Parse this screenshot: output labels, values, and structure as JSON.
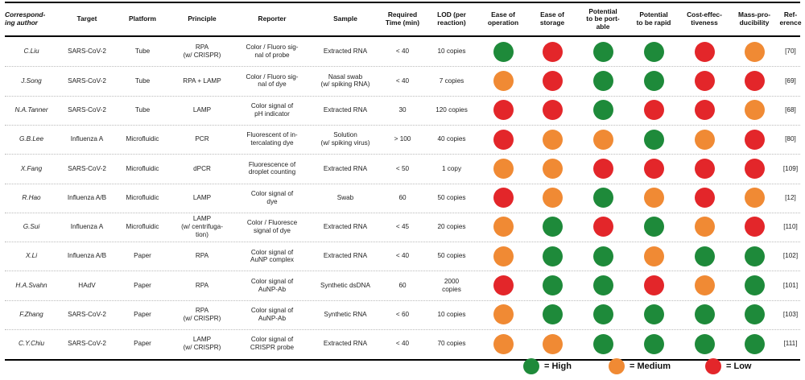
{
  "colors": {
    "High": "#1e8a3a",
    "Medium": "#f08a34",
    "Low": "#e3262a"
  },
  "headers": [
    "Correspond-\ning author",
    "Target",
    "Platform",
    "Principle",
    "Reporter",
    "Sample",
    "Required\nTime (min)",
    "LOD (per\nreaction)",
    "Ease of\noperation",
    "Ease of\nstorage",
    "Potential\nto be port-\nable",
    "Potential\nto be rapid",
    "Cost-effec-\ntiveness",
    "Mass-pro-\nducibility",
    "Ref-\nerence"
  ],
  "rows": [
    {
      "author": "C.Liu",
      "target": "SARS-CoV-2",
      "platform": "Tube",
      "principle": "RPA\n(w/ CRISPR)",
      "reporter": "Color / Fluoro sig-\nnal of probe",
      "sample": "Extracted RNA",
      "time": "< 40",
      "lod": "10 copies",
      "ratings": [
        "High",
        "Low",
        "High",
        "High",
        "Low",
        "Medium"
      ],
      "ref": "[70]"
    },
    {
      "author": "J.Song",
      "target": "SARS-CoV-2",
      "platform": "Tube",
      "principle": "RPA + LAMP",
      "reporter": "Color / Fluoro sig-\nnal of dye",
      "sample": "Nasal swab\n(w/ spiking RNA)",
      "time": "< 40",
      "lod": "7 copies",
      "ratings": [
        "Medium",
        "Low",
        "High",
        "High",
        "Low",
        "Low"
      ],
      "ref": "[69]"
    },
    {
      "author": "N.A.Tanner",
      "target": "SARS-CoV-2",
      "platform": "Tube",
      "principle": "LAMP",
      "reporter": "Color signal of\npH indicator",
      "sample": "Extracted RNA",
      "time": "30",
      "lod": "120 copies",
      "ratings": [
        "Low",
        "Low",
        "High",
        "Low",
        "Low",
        "Medium"
      ],
      "ref": "[68]"
    },
    {
      "author": "G.B.Lee",
      "target": "Influenza A",
      "platform": "Microfluidic",
      "principle": "PCR",
      "reporter": "Fluorescent of in-\ntercalating dye",
      "sample": "Solution\n(w/ spiking virus)",
      "time": "> 100",
      "lod": "40 copies",
      "ratings": [
        "Low",
        "Medium",
        "Medium",
        "High",
        "Medium",
        "Low"
      ],
      "ref": "[80]"
    },
    {
      "author": "X.Fang",
      "target": "SARS-CoV-2",
      "platform": "Microfluidic",
      "principle": "dPCR",
      "reporter": "Fluorescence of\ndroplet counting",
      "sample": "Extracted RNA",
      "time": "< 50",
      "lod": "1 copy",
      "ratings": [
        "Medium",
        "Medium",
        "Low",
        "Low",
        "Low",
        "Low"
      ],
      "ref": "[109]"
    },
    {
      "author": "R.Hao",
      "target": "Influenza A/B",
      "platform": "Microfluidic",
      "principle": "LAMP",
      "reporter": "Color signal of\ndye",
      "sample": "Swab",
      "time": "60",
      "lod": "50 copies",
      "ratings": [
        "Low",
        "Medium",
        "High",
        "Medium",
        "Low",
        "Medium"
      ],
      "ref": "[12]"
    },
    {
      "author": "G.Sui",
      "target": "Influenza A",
      "platform": "Microfluidic",
      "principle": "LAMP\n(w/ centrifuga-\ntion)",
      "reporter": "Color / Fluoresce\nsignal of dye",
      "sample": "Extracted RNA",
      "time": "< 45",
      "lod": "20 copies",
      "ratings": [
        "Medium",
        "High",
        "Low",
        "High",
        "Medium",
        "Low"
      ],
      "ref": "[110]"
    },
    {
      "author": "X.Li",
      "target": "Influenza A/B",
      "platform": "Paper",
      "principle": "RPA",
      "reporter": "Color signal of\nAuNP complex",
      "sample": "Extracted RNA",
      "time": "< 40",
      "lod": "50 copies",
      "ratings": [
        "Medium",
        "High",
        "High",
        "Medium",
        "High",
        "High"
      ],
      "ref": "[102]"
    },
    {
      "author": "H.A.Svahn",
      "target": "HAdV",
      "platform": "Paper",
      "principle": "RPA",
      "reporter": "Color signal of\nAuNP-Ab",
      "sample": "Synthetic dsDNA",
      "time": "60",
      "lod": "2000\ncopies",
      "ratings": [
        "Low",
        "High",
        "High",
        "Low",
        "Medium",
        "High"
      ],
      "ref": "[101]"
    },
    {
      "author": "F.Zhang",
      "target": "SARS-CoV-2",
      "platform": "Paper",
      "principle": "RPA\n(w/ CRISPR)",
      "reporter": "Color signal of\nAuNP-Ab",
      "sample": "Synthetic RNA",
      "time": "< 60",
      "lod": "10 copies",
      "ratings": [
        "Medium",
        "High",
        "High",
        "High",
        "High",
        "High"
      ],
      "ref": "[103]"
    },
    {
      "author": "C.Y.Chiu",
      "target": "SARS-CoV-2",
      "platform": "Paper",
      "principle": "LAMP\n(w/ CRISPR)",
      "reporter": "Color signal of\nCRISPR probe",
      "sample": "Extracted RNA",
      "time": "< 40",
      "lod": "70 copies",
      "ratings": [
        "Medium",
        "Medium",
        "High",
        "High",
        "High",
        "High"
      ],
      "ref": "[111]"
    }
  ],
  "legend": [
    {
      "level": "High",
      "label": "= High"
    },
    {
      "level": "Medium",
      "label": "= Medium"
    },
    {
      "level": "Low",
      "label": "= Low"
    }
  ]
}
